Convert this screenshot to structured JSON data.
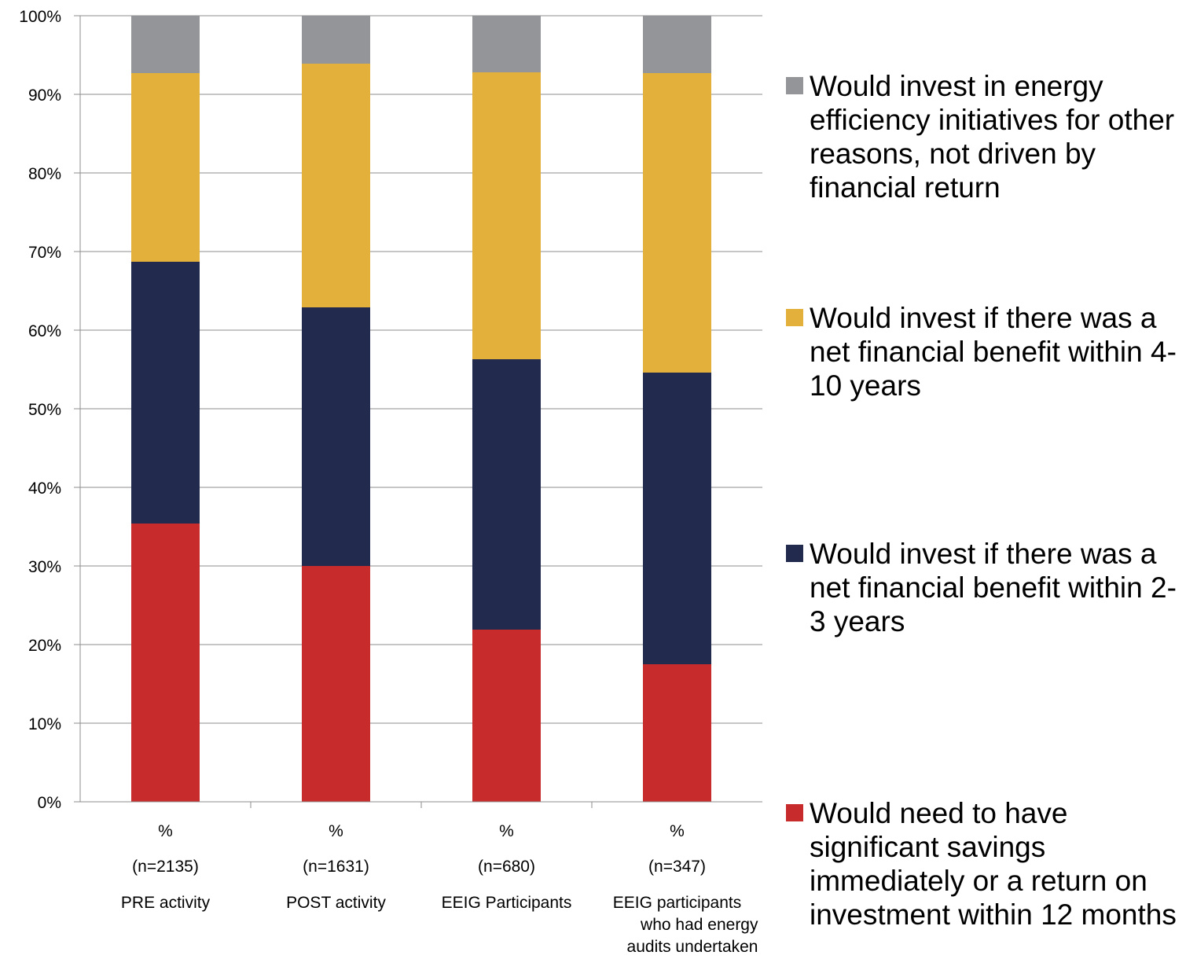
{
  "chart_data": {
    "type": "bar",
    "stacked": true,
    "title": "",
    "xlabel": "",
    "ylabel": "",
    "ylim": [
      0,
      100
    ],
    "yticks": [
      "0%",
      "10%",
      "20%",
      "30%",
      "40%",
      "50%",
      "60%",
      "70%",
      "80%",
      "90%",
      "100%"
    ],
    "grid": true,
    "legend_position": "right",
    "categories": [
      [
        "%",
        "(n=2135)",
        "PRE activity"
      ],
      [
        "%",
        "(n=1631)",
        "POST activity"
      ],
      [
        "%",
        "(n=680)",
        "EEIG Participants"
      ],
      [
        "%",
        "(n=347)",
        "EEIG participants",
        "who had energy",
        "audits undertaken"
      ]
    ],
    "series": [
      {
        "name": "Would need to have significant savings immediately or a return on investment within 12 months",
        "color": "#c82b2b",
        "values": [
          35.4,
          30.0,
          21.9,
          17.5
        ]
      },
      {
        "name": "Would invest if there was a net financial benefit within 2-3 years",
        "color": "#222a4d",
        "values": [
          33.3,
          32.9,
          34.4,
          37.1
        ]
      },
      {
        "name": "Would invest if there was a net financial benefit within 4-10 years",
        "color": "#e2b03b",
        "values": [
          24.0,
          31.0,
          36.5,
          38.1
        ]
      },
      {
        "name": "Would invest in energy efficiency initiatives for other reasons, not driven by financial return",
        "color": "#939598",
        "values": [
          7.3,
          6.1,
          7.2,
          7.3
        ]
      }
    ]
  }
}
